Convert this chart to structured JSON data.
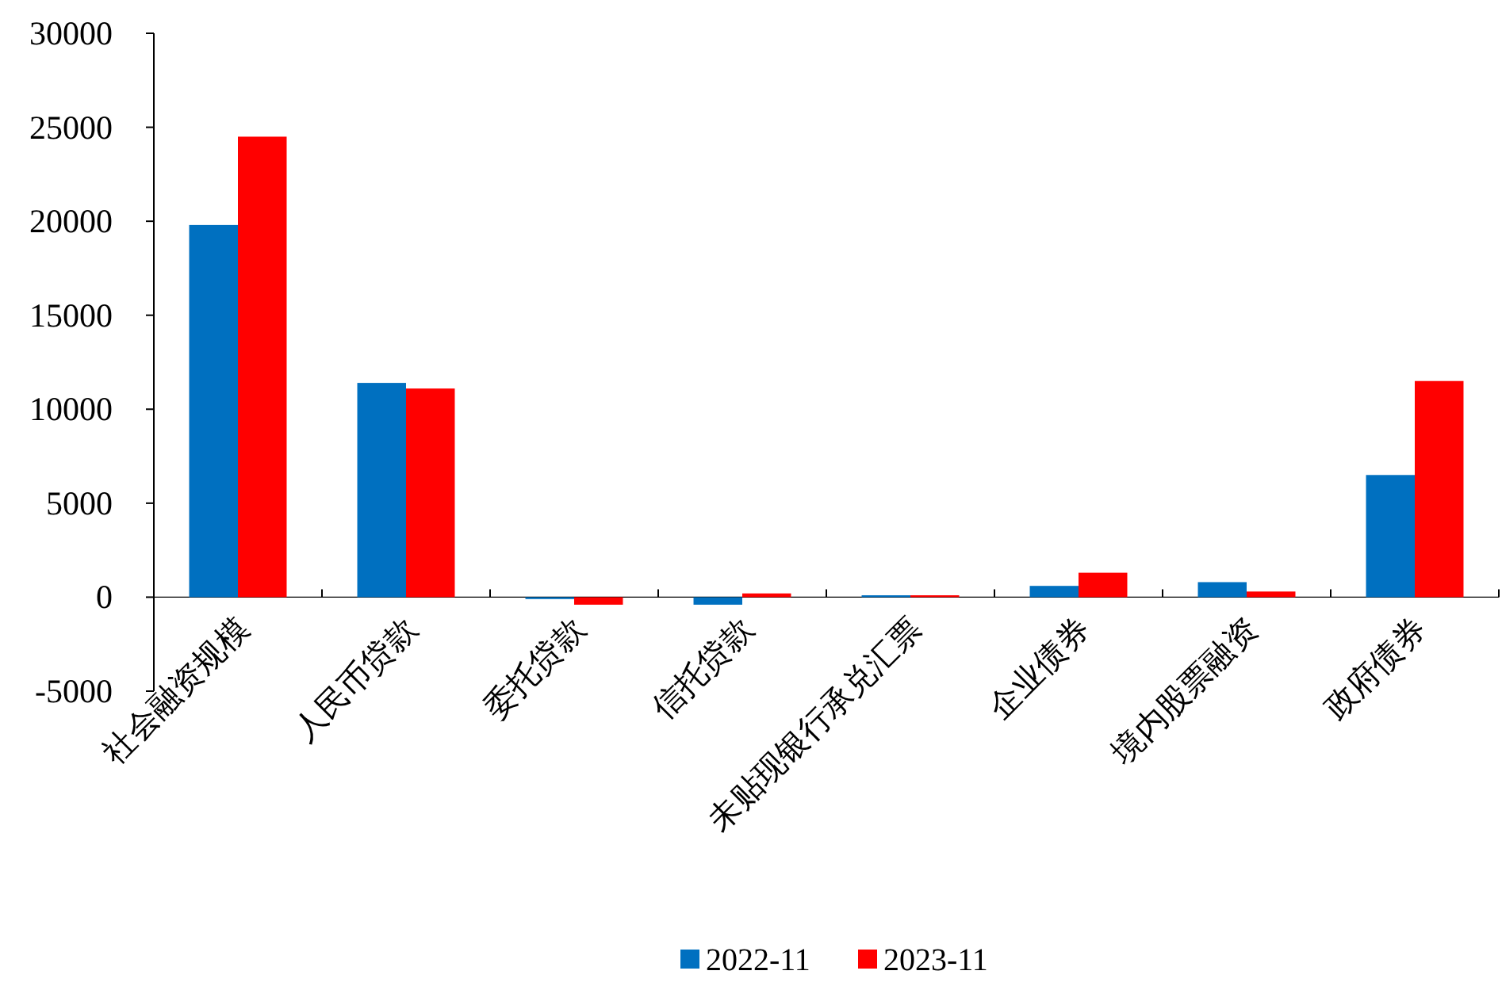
{
  "chart_data": {
    "type": "bar",
    "categories": [
      "社会融资规模",
      "人民币贷款",
      "委托贷款",
      "信托贷款",
      "未贴现银行承兑汇票",
      "企业债券",
      "境内股票融资",
      "政府债券"
    ],
    "series": [
      {
        "name": "2022-11",
        "color": "#0070c0",
        "values": [
          19800,
          11400,
          -100,
          -400,
          100,
          600,
          800,
          6500
        ]
      },
      {
        "name": "2023-11",
        "color": "#ff0000",
        "values": [
          24500,
          11100,
          -400,
          200,
          100,
          1300,
          300,
          11500
        ]
      }
    ],
    "ylim": [
      -5000,
      30000
    ],
    "yticks": [
      -5000,
      0,
      5000,
      10000,
      15000,
      20000,
      25000,
      30000
    ],
    "grid": false,
    "legend": "bottom"
  }
}
